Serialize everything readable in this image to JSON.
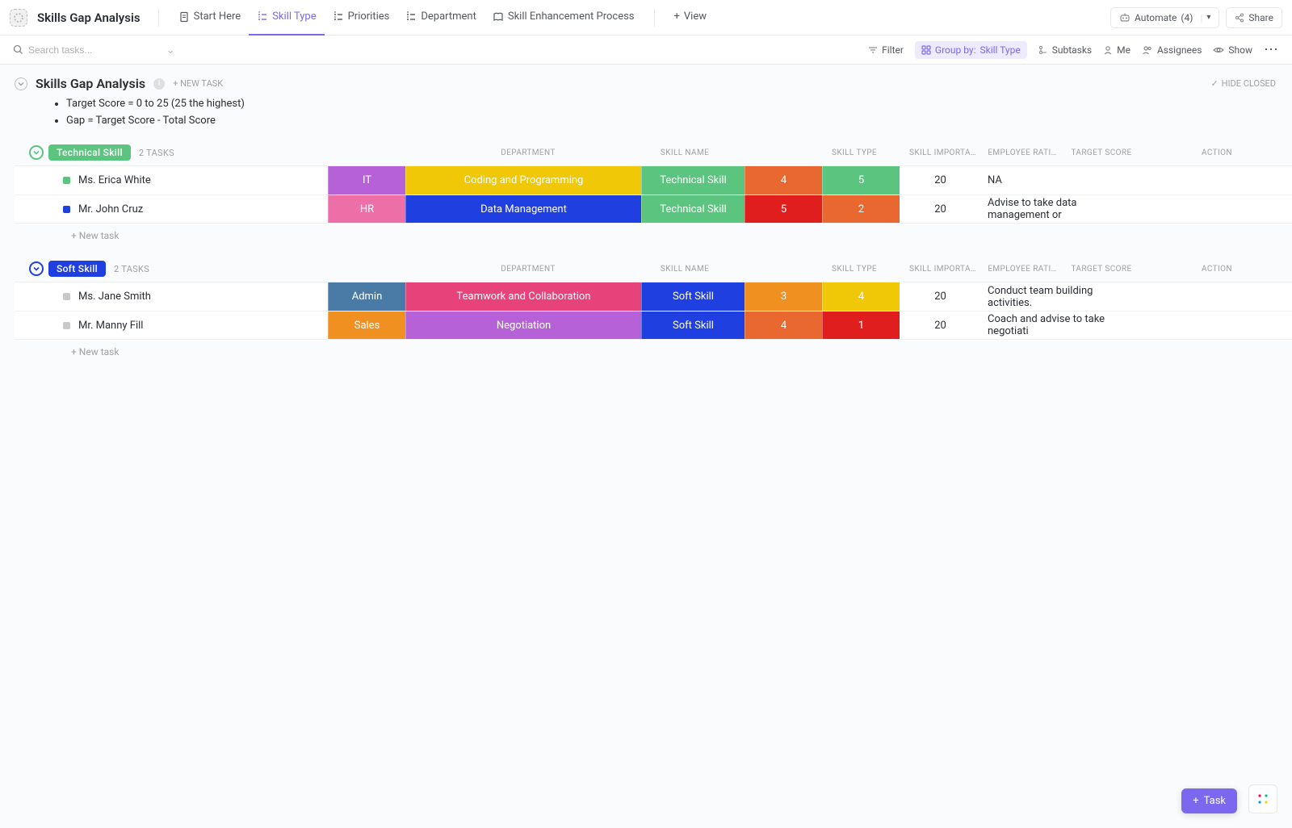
{
  "header": {
    "title": "Skills Gap Analysis",
    "tabs": [
      {
        "label": "Start Here",
        "icon": "doc"
      },
      {
        "label": "Skill Type",
        "icon": "list",
        "active": true
      },
      {
        "label": "Priorities",
        "icon": "list"
      },
      {
        "label": "Department",
        "icon": "list"
      },
      {
        "label": "Skill Enhancement Process",
        "icon": "book"
      }
    ],
    "add_view": "View",
    "automate_label": "Automate",
    "automate_count": "(4)",
    "share_label": "Share"
  },
  "toolbar": {
    "search_placeholder": "Search tasks...",
    "filter": "Filter",
    "group_by_prefix": "Group by:",
    "group_by_value": "Skill Type",
    "subtasks": "Subtasks",
    "me": "Me",
    "assignees": "Assignees",
    "show": "Show"
  },
  "list": {
    "title": "Skills Gap Analysis",
    "new_task": "+ NEW TASK",
    "hide_closed": "HIDE CLOSED",
    "description": [
      "Target Score = 0 to 25 (25 the highest)",
      "Gap = Target Score - Total Score"
    ]
  },
  "columns": {
    "widths": {
      "lead": 388,
      "department": 96,
      "skill_name": 292,
      "skill_type": 128,
      "skill_importance": 96,
      "employee_rating": 96,
      "target_score": 100,
      "action": 186
    },
    "headers": {
      "department": "DEPARTMENT",
      "skill_name": "SKILL NAME",
      "skill_type": "SKILL TYPE",
      "skill_importance": "SKILL IMPORTAN…",
      "employee_rating": "EMPLOYEE RATI…",
      "target_score": "TARGET SCORE",
      "action": "ACTION"
    }
  },
  "groups": [
    {
      "name": "Technical Skill",
      "badge_color": "#5bc47e",
      "collapse_color": "#5bc47e",
      "task_count": "2 TASKS",
      "new_task": "+ New task",
      "rows": [
        {
          "status_color": "#5bc47e",
          "name": "Ms. Erica White",
          "cells": {
            "department": {
              "text": "IT",
              "bg": "#b661d8"
            },
            "skill_name": {
              "text": "Coding and Programming",
              "bg": "#f0c808"
            },
            "skill_type": {
              "text": "Technical Skill",
              "bg": "#5bc47e"
            },
            "skill_importance": {
              "text": "4",
              "bg": "#e86830"
            },
            "employee_rating": {
              "text": "5",
              "bg": "#5bc47e"
            },
            "target_score": {
              "text": "20",
              "bg": "#ffffff",
              "plain": true
            },
            "action": {
              "text": "NA",
              "bg": "#ffffff",
              "plain": true,
              "left": true
            }
          }
        },
        {
          "status_color": "#1f3fe0",
          "name": "Mr. John Cruz",
          "cells": {
            "department": {
              "text": "HR",
              "bg": "#ec6fa8"
            },
            "skill_name": {
              "text": "Data Management",
              "bg": "#1f3fe0"
            },
            "skill_type": {
              "text": "Technical Skill",
              "bg": "#5bc47e"
            },
            "skill_importance": {
              "text": "5",
              "bg": "#e01e1e"
            },
            "employee_rating": {
              "text": "2",
              "bg": "#e86830"
            },
            "target_score": {
              "text": "20",
              "bg": "#ffffff",
              "plain": true
            },
            "action": {
              "text": "Advise to take data management or",
              "bg": "#ffffff",
              "plain": true,
              "left": true
            }
          }
        }
      ]
    },
    {
      "name": "Soft Skill",
      "badge_color": "#1f3fe0",
      "collapse_color": "#1f3fe0",
      "task_count": "2 TASKS",
      "new_task": "+ New task",
      "rows": [
        {
          "status_color": "#c8c8c8",
          "name": "Ms. Jane Smith",
          "cells": {
            "department": {
              "text": "Admin",
              "bg": "#4a7ba6"
            },
            "skill_name": {
              "text": "Teamwork and Collaboration",
              "bg": "#e8427a"
            },
            "skill_type": {
              "text": "Soft Skill",
              "bg": "#1f3fe0"
            },
            "skill_importance": {
              "text": "3",
              "bg": "#f09020"
            },
            "employee_rating": {
              "text": "4",
              "bg": "#f0c808"
            },
            "target_score": {
              "text": "20",
              "bg": "#ffffff",
              "plain": true
            },
            "action": {
              "text": "Conduct team building activities.",
              "bg": "#ffffff",
              "plain": true,
              "left": true
            }
          }
        },
        {
          "status_color": "#c8c8c8",
          "name": "Mr. Manny Fill",
          "cells": {
            "department": {
              "text": "Sales",
              "bg": "#f09020"
            },
            "skill_name": {
              "text": "Negotiation",
              "bg": "#b661d8"
            },
            "skill_type": {
              "text": "Soft Skill",
              "bg": "#1f3fe0"
            },
            "skill_importance": {
              "text": "4",
              "bg": "#e86830"
            },
            "employee_rating": {
              "text": "1",
              "bg": "#e01e1e"
            },
            "target_score": {
              "text": "20",
              "bg": "#ffffff",
              "plain": true
            },
            "action": {
              "text": "Coach and advise to take negotiati",
              "bg": "#ffffff",
              "plain": true,
              "left": true
            }
          }
        }
      ]
    }
  ],
  "floating": {
    "task_label": "Task"
  }
}
